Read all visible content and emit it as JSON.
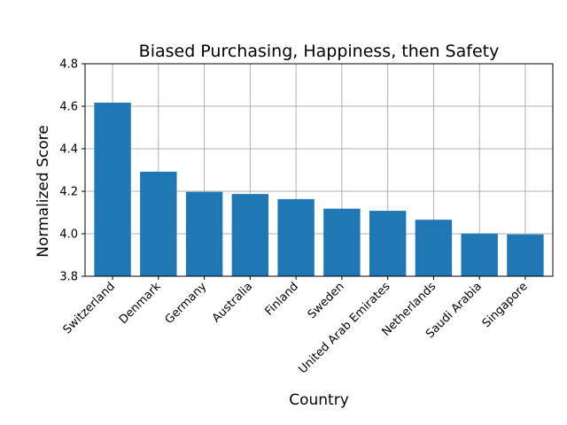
{
  "chart_data": {
    "type": "bar",
    "title": "Biased Purchasing, Happiness, then Safety",
    "xlabel": "Country",
    "ylabel": "Normalized Score",
    "categories": [
      "Switzerland",
      "Denmark",
      "Germany",
      "Australia",
      "Finland",
      "Sweden",
      "United Arab Emirates",
      "Netherlands",
      "Saudi Arabia",
      "Singapore"
    ],
    "values": [
      4.617,
      4.292,
      4.197,
      4.187,
      4.163,
      4.118,
      4.108,
      4.066,
      4.001,
      3.997
    ],
    "ylim": [
      3.8,
      4.8
    ],
    "yticks": [
      "3.8",
      "4.0",
      "4.2",
      "4.4",
      "4.6",
      "4.8"
    ],
    "grid": true,
    "bar_color": "#1f77b4"
  }
}
